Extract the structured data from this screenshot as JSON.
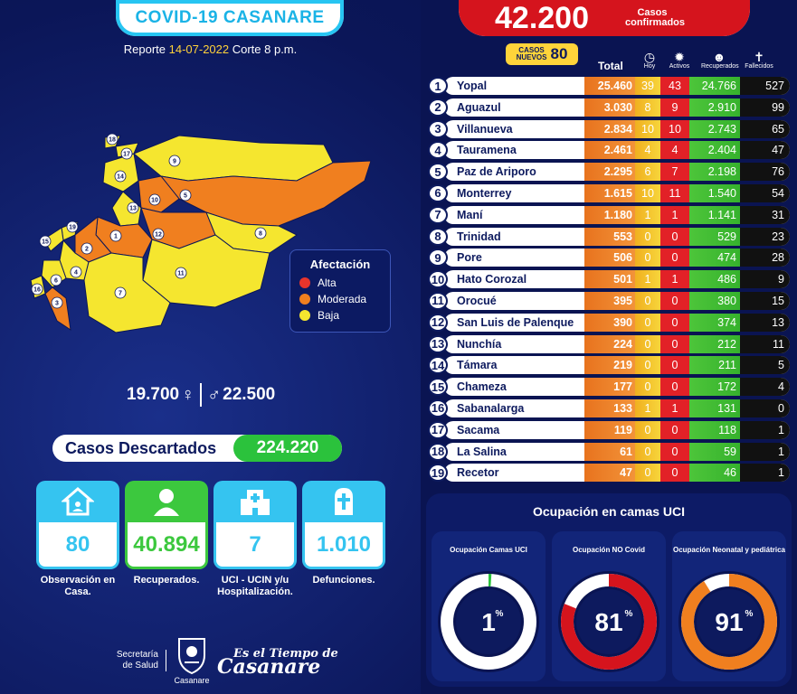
{
  "header": {
    "title": "COVID-19 CASANARE",
    "report_prefix": "Reporte ",
    "report_date": "14-07-2022",
    "report_suffix": " Corte 8 p.m."
  },
  "legend": {
    "title": "Afectación",
    "items": [
      {
        "label": "Alta",
        "color": "#e8342c"
      },
      {
        "label": "Moderada",
        "color": "#f07f1f"
      },
      {
        "label": "Baja",
        "color": "#f5e62f"
      }
    ]
  },
  "map": {
    "region_numbers": [
      "1",
      "2",
      "3",
      "4",
      "5",
      "6",
      "7",
      "8",
      "9",
      "10",
      "11",
      "12",
      "13",
      "14",
      "15",
      "16",
      "17",
      "18",
      "19"
    ]
  },
  "gender": {
    "women": "19.700",
    "men": "22.500"
  },
  "discarded": {
    "label": "Casos  Descartados",
    "value": "224.220"
  },
  "cards": [
    {
      "value": "80",
      "caption": "Observación en Casa.",
      "icon": "house-icon",
      "color": "#35c4f0"
    },
    {
      "value": "40.894",
      "caption": "Recuperados.",
      "icon": "person-icon",
      "color": "#3cc83e"
    },
    {
      "value": "7",
      "caption": "UCI - UCIN y/u Hospitalización.",
      "icon": "hospital-icon",
      "color": "#35c4f0"
    },
    {
      "value": "1.010",
      "caption": "Defunciones.",
      "icon": "tombstone-icon",
      "color": "#35c4f0"
    }
  ],
  "footer": {
    "secretaria": "Secretaría de Salud",
    "casanare": "Casanare",
    "slogan_top": "Es el Tiempo de",
    "slogan_big": "Casanare"
  },
  "confirmed": {
    "value": "42.200",
    "label": "Casos confirmados"
  },
  "new_cases": {
    "label": "CASOS NUEVOS",
    "value": "80"
  },
  "table_headers": {
    "total": "Total",
    "hoy": "Hoy",
    "activos": "Activos",
    "recuperados": "Recuperados",
    "fallecidos": "Fallecidos"
  },
  "municipalities": [
    {
      "n": "1",
      "name": "Yopal",
      "total": "25.460",
      "hoy": "39",
      "activos": "43",
      "recuperados": "24.766",
      "fallecidos": "527"
    },
    {
      "n": "2",
      "name": "Aguazul",
      "total": "3.030",
      "hoy": "8",
      "activos": "9",
      "recuperados": "2.910",
      "fallecidos": "99"
    },
    {
      "n": "3",
      "name": "Villanueva",
      "total": "2.834",
      "hoy": "10",
      "activos": "10",
      "recuperados": "2.743",
      "fallecidos": "65"
    },
    {
      "n": "4",
      "name": "Tauramena",
      "total": "2.461",
      "hoy": "4",
      "activos": "4",
      "recuperados": "2.404",
      "fallecidos": "47"
    },
    {
      "n": "5",
      "name": "Paz de Ariporo",
      "total": "2.295",
      "hoy": "6",
      "activos": "7",
      "recuperados": "2.198",
      "fallecidos": "76"
    },
    {
      "n": "6",
      "name": "Monterrey",
      "total": "1.615",
      "hoy": "10",
      "activos": "11",
      "recuperados": "1.540",
      "fallecidos": "54"
    },
    {
      "n": "7",
      "name": "Maní",
      "total": "1.180",
      "hoy": "1",
      "activos": "1",
      "recuperados": "1.141",
      "fallecidos": "31"
    },
    {
      "n": "8",
      "name": "Trinidad",
      "total": "553",
      "hoy": "0",
      "activos": "0",
      "recuperados": "529",
      "fallecidos": "23"
    },
    {
      "n": "9",
      "name": "Pore",
      "total": "506",
      "hoy": "0",
      "activos": "0",
      "recuperados": "474",
      "fallecidos": "28"
    },
    {
      "n": "10",
      "name": "Hato Corozal",
      "total": "501",
      "hoy": "1",
      "activos": "1",
      "recuperados": "486",
      "fallecidos": "9"
    },
    {
      "n": "11",
      "name": "Orocué",
      "total": "395",
      "hoy": "0",
      "activos": "0",
      "recuperados": "380",
      "fallecidos": "15"
    },
    {
      "n": "12",
      "name": "San Luis de Palenque",
      "total": "390",
      "hoy": "0",
      "activos": "0",
      "recuperados": "374",
      "fallecidos": "13"
    },
    {
      "n": "13",
      "name": "Nunchía",
      "total": "224",
      "hoy": "0",
      "activos": "0",
      "recuperados": "212",
      "fallecidos": "11"
    },
    {
      "n": "14",
      "name": "Támara",
      "total": "219",
      "hoy": "0",
      "activos": "0",
      "recuperados": "211",
      "fallecidos": "5"
    },
    {
      "n": "15",
      "name": "Chameza",
      "total": "177",
      "hoy": "0",
      "activos": "0",
      "recuperados": "172",
      "fallecidos": "4"
    },
    {
      "n": "16",
      "name": "Sabanalarga",
      "total": "133",
      "hoy": "1",
      "activos": "1",
      "recuperados": "131",
      "fallecidos": "0"
    },
    {
      "n": "17",
      "name": "Sacama",
      "total": "119",
      "hoy": "0",
      "activos": "0",
      "recuperados": "118",
      "fallecidos": "1"
    },
    {
      "n": "18",
      "name": "La Salina",
      "total": "61",
      "hoy": "0",
      "activos": "0",
      "recuperados": "59",
      "fallecidos": "1"
    },
    {
      "n": "19",
      "name": "Recetor",
      "total": "47",
      "hoy": "0",
      "activos": "0",
      "recuperados": "46",
      "fallecidos": "1"
    }
  ],
  "uci": {
    "title": "Ocupación en camas UCI",
    "gauges": [
      {
        "label": "Ocupación Camas UCI",
        "value": "1",
        "percent": 1,
        "color": "#2bc23c"
      },
      {
        "label": "Ocupación NO Covid",
        "value": "81",
        "percent": 81,
        "color": "#d5141d"
      },
      {
        "label": "Ocupación Neonatal y pediátrica",
        "value": "91",
        "percent": 91,
        "color": "#f07f1f"
      }
    ],
    "percent_sign": "%"
  }
}
